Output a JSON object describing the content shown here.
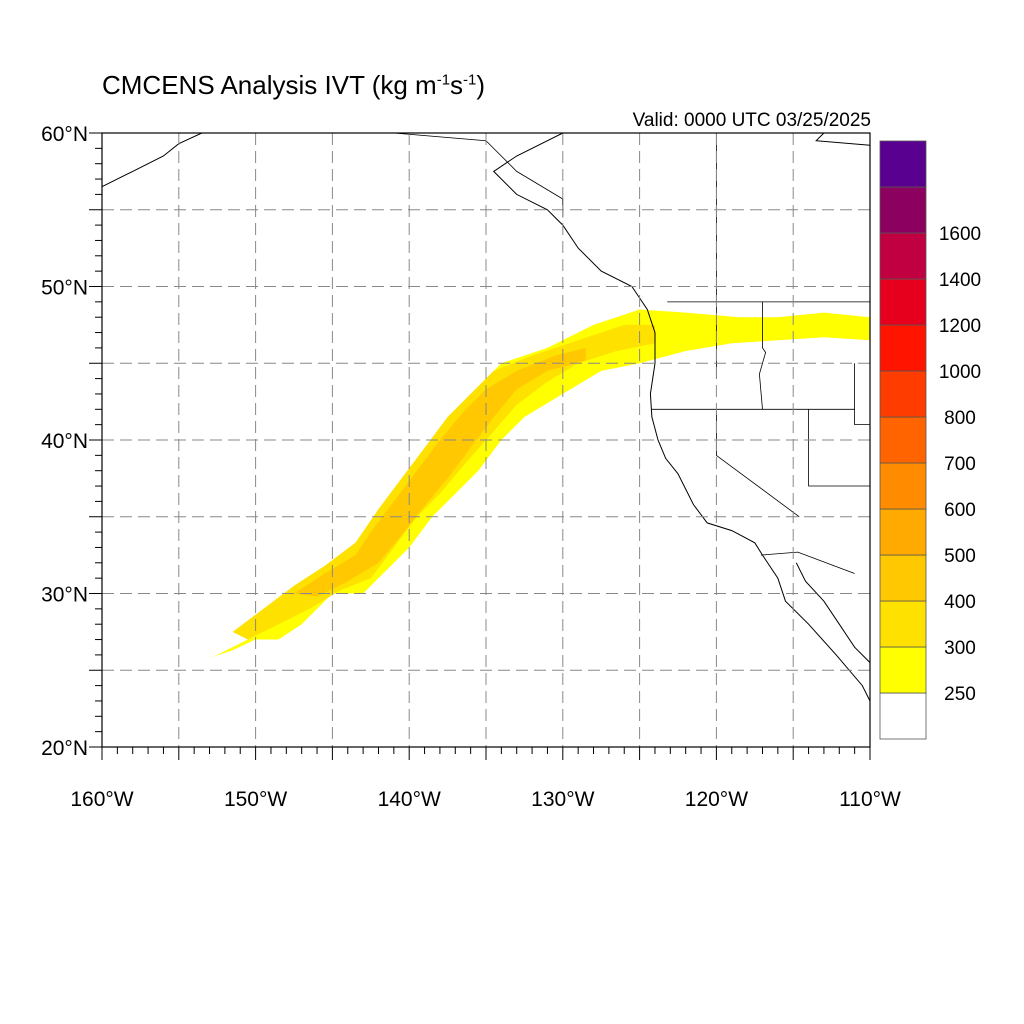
{
  "title": {
    "main": "CMCENS Analysis IVT (kg m",
    "sup1": "-1",
    "mid": "s",
    "sup2": "-1",
    "end": ")"
  },
  "valid_label": "Valid: 0000 UTC 03/25/2025",
  "map": {
    "lon_range": [
      -160,
      -110
    ],
    "lat_range": [
      20,
      60
    ],
    "gridlines": true,
    "lat_labels": [
      {
        "lat": 60,
        "label": "60°N"
      },
      {
        "lat": 50,
        "label": "50°N"
      },
      {
        "lat": 40,
        "label": "40°N"
      },
      {
        "lat": 30,
        "label": "30°N"
      },
      {
        "lat": 20,
        "label": "20°N"
      }
    ],
    "lon_labels": [
      {
        "lon": -160,
        "label": "160°W"
      },
      {
        "lon": -150,
        "label": "150°W"
      },
      {
        "lon": -140,
        "label": "140°W"
      },
      {
        "lon": -130,
        "label": "130°W"
      },
      {
        "lon": -120,
        "label": "120°W"
      },
      {
        "lon": -110,
        "label": "110°W"
      }
    ]
  },
  "colorbar": {
    "colors": [
      "#ffffff",
      "#ffff00",
      "#ffe100",
      "#ffc800",
      "#ffaa00",
      "#ff8c00",
      "#ff6400",
      "#ff3c00",
      "#ff1400",
      "#e6001e",
      "#c00040",
      "#8c0060",
      "#5a0090"
    ],
    "labels": [
      "250",
      "300",
      "400",
      "500",
      "600",
      "700",
      "800",
      "1000",
      "1200",
      "1400",
      "1600"
    ]
  },
  "ivt_plume": {
    "outer_color": "#ffff00",
    "mid_color": "#ffe100",
    "core_color": "#ffc800",
    "outer": [
      [
        -152.5,
        26
      ],
      [
        -150.5,
        27
      ],
      [
        -149,
        28.5
      ],
      [
        -147,
        30
      ],
      [
        -145,
        31.2
      ],
      [
        -143,
        33
      ],
      [
        -141,
        35.5
      ],
      [
        -140,
        37.5
      ],
      [
        -138.5,
        39.5
      ],
      [
        -137,
        41.5
      ],
      [
        -135.5,
        43.5
      ],
      [
        -134,
        45
      ],
      [
        -131,
        46
      ],
      [
        -128,
        47.5
      ],
      [
        -125,
        48.5
      ],
      [
        -122,
        48.3
      ],
      [
        -118.5,
        48
      ],
      [
        -116,
        48
      ],
      [
        -113,
        48.3
      ],
      [
        -110,
        48
      ],
      [
        -110,
        46.5
      ],
      [
        -113,
        46.7
      ],
      [
        -116,
        46.5
      ],
      [
        -119,
        46.3
      ],
      [
        -122,
        45.8
      ],
      [
        -125,
        45
      ],
      [
        -127.5,
        44.5
      ],
      [
        -130,
        43
      ],
      [
        -132.5,
        41.5
      ],
      [
        -134,
        40
      ],
      [
        -135.5,
        38
      ],
      [
        -137,
        36.5
      ],
      [
        -138.5,
        35
      ],
      [
        -140,
        33
      ],
      [
        -141.5,
        31.5
      ],
      [
        -143,
        30
      ],
      [
        -145,
        30
      ],
      [
        -147,
        28
      ],
      [
        -148.5,
        27
      ],
      [
        -150,
        27
      ],
      [
        -151.5,
        26.3
      ],
      [
        -153,
        25.8
      ]
    ],
    "mid": [
      [
        -151.5,
        27.5
      ],
      [
        -149.5,
        29
      ],
      [
        -147.5,
        30.5
      ],
      [
        -145.5,
        31.8
      ],
      [
        -143.5,
        33.3
      ],
      [
        -142,
        35.5
      ],
      [
        -140.5,
        37.5
      ],
      [
        -139,
        39.5
      ],
      [
        -137.5,
        41.5
      ],
      [
        -136,
        43
      ],
      [
        -134.5,
        44.5
      ],
      [
        -132,
        45.5
      ],
      [
        -129,
        46.5
      ],
      [
        -126,
        47.5
      ],
      [
        -124,
        47.5
      ],
      [
        -124,
        46.3
      ],
      [
        -126.5,
        45.8
      ],
      [
        -129,
        45
      ],
      [
        -131,
        43.8
      ],
      [
        -133,
        42.3
      ],
      [
        -135,
        40
      ],
      [
        -136.5,
        38.3
      ],
      [
        -138,
        36.5
      ],
      [
        -139.5,
        35
      ],
      [
        -141,
        33
      ],
      [
        -142.5,
        31
      ],
      [
        -144.5,
        30.2
      ],
      [
        -146.5,
        29
      ],
      [
        -148.5,
        28
      ],
      [
        -150.5,
        27
      ]
    ],
    "core": [
      [
        -147.5,
        30
      ],
      [
        -145.5,
        31.3
      ],
      [
        -143.5,
        32.5
      ],
      [
        -142.5,
        34
      ],
      [
        -141,
        36
      ],
      [
        -139.5,
        38
      ],
      [
        -138,
        40
      ],
      [
        -136.5,
        41.8
      ],
      [
        -135,
        43.3
      ],
      [
        -133,
        44.5
      ],
      [
        -130.5,
        45.5
      ],
      [
        -128.5,
        46
      ],
      [
        -128.5,
        45.2
      ],
      [
        -131,
        44.5
      ],
      [
        -133,
        43.3
      ],
      [
        -134.5,
        41.5
      ],
      [
        -136,
        39.5
      ],
      [
        -137.5,
        37.5
      ],
      [
        -139,
        35.7
      ],
      [
        -140.5,
        33.8
      ],
      [
        -142,
        32
      ],
      [
        -144,
        30.8
      ],
      [
        -146,
        29.8
      ]
    ]
  },
  "boundaries": {
    "coast": [
      [
        [
          -130,
          60
        ],
        [
          -133,
          58.5
        ],
        [
          -134.5,
          57.5
        ],
        [
          -133,
          56
        ],
        [
          -131,
          55
        ],
        [
          -130,
          54
        ],
        [
          -129,
          52.5
        ],
        [
          -127.5,
          51
        ],
        [
          -125.5,
          50
        ],
        [
          -124.5,
          48.5
        ],
        [
          -124,
          47
        ],
        [
          -124,
          45
        ],
        [
          -124.3,
          43
        ],
        [
          -124.2,
          41.5
        ],
        [
          -123.8,
          40
        ],
        [
          -123.3,
          38.8
        ],
        [
          -122.5,
          37.8
        ],
        [
          -122,
          36.8
        ],
        [
          -121.5,
          35.8
        ],
        [
          -120.6,
          34.6
        ],
        [
          -119,
          34.1
        ],
        [
          -117.5,
          33.3
        ],
        [
          -117,
          32.5
        ],
        [
          -116,
          31
        ],
        [
          -115.5,
          29.5
        ],
        [
          -114,
          28
        ],
        [
          -112.2,
          26
        ],
        [
          -110.5,
          24
        ],
        [
          -110,
          23
        ]
      ],
      [
        [
          -114.8,
          32
        ],
        [
          -114.2,
          30.8
        ],
        [
          -113,
          29.5
        ],
        [
          -112,
          28
        ],
        [
          -111,
          26.5
        ],
        [
          -110,
          25.5
        ]
      ],
      [
        [
          -160,
          56.5
        ],
        [
          -158,
          57.5
        ],
        [
          -156,
          58.5
        ],
        [
          -155,
          59.3
        ],
        [
          -153.5,
          60
        ]
      ],
      [
        [
          -113,
          60
        ],
        [
          -113.5,
          59.5
        ],
        [
          -110,
          59.2
        ]
      ]
    ],
    "borders": [
      [
        [
          -120,
          60
        ],
        [
          -120,
          44
        ]
      ],
      [
        [
          -123.2,
          49
        ],
        [
          -110,
          49
        ]
      ],
      [
        [
          -117,
          49
        ],
        [
          -117,
          46
        ],
        [
          -116.8,
          45.7
        ],
        [
          -117.2,
          44.3
        ],
        [
          -117,
          42
        ]
      ],
      [
        [
          -124.2,
          42
        ],
        [
          -111,
          42
        ]
      ],
      [
        [
          -120,
          42
        ],
        [
          -120,
          39
        ],
        [
          -114.6,
          35
        ]
      ],
      [
        [
          -117.1,
          32.5
        ],
        [
          -114.7,
          32.7
        ],
        [
          -111,
          31.3
        ]
      ],
      [
        [
          -114,
          42
        ],
        [
          -114,
          37
        ],
        [
          -110,
          37
        ]
      ],
      [
        [
          -111,
          45
        ],
        [
          -111,
          41
        ],
        [
          -110,
          41
        ]
      ],
      [
        [
          -141,
          60
        ],
        [
          -135,
          59.5
        ],
        [
          -133,
          57.5
        ],
        [
          -130,
          55.7
        ],
        [
          -130,
          54.5
        ]
      ]
    ]
  }
}
